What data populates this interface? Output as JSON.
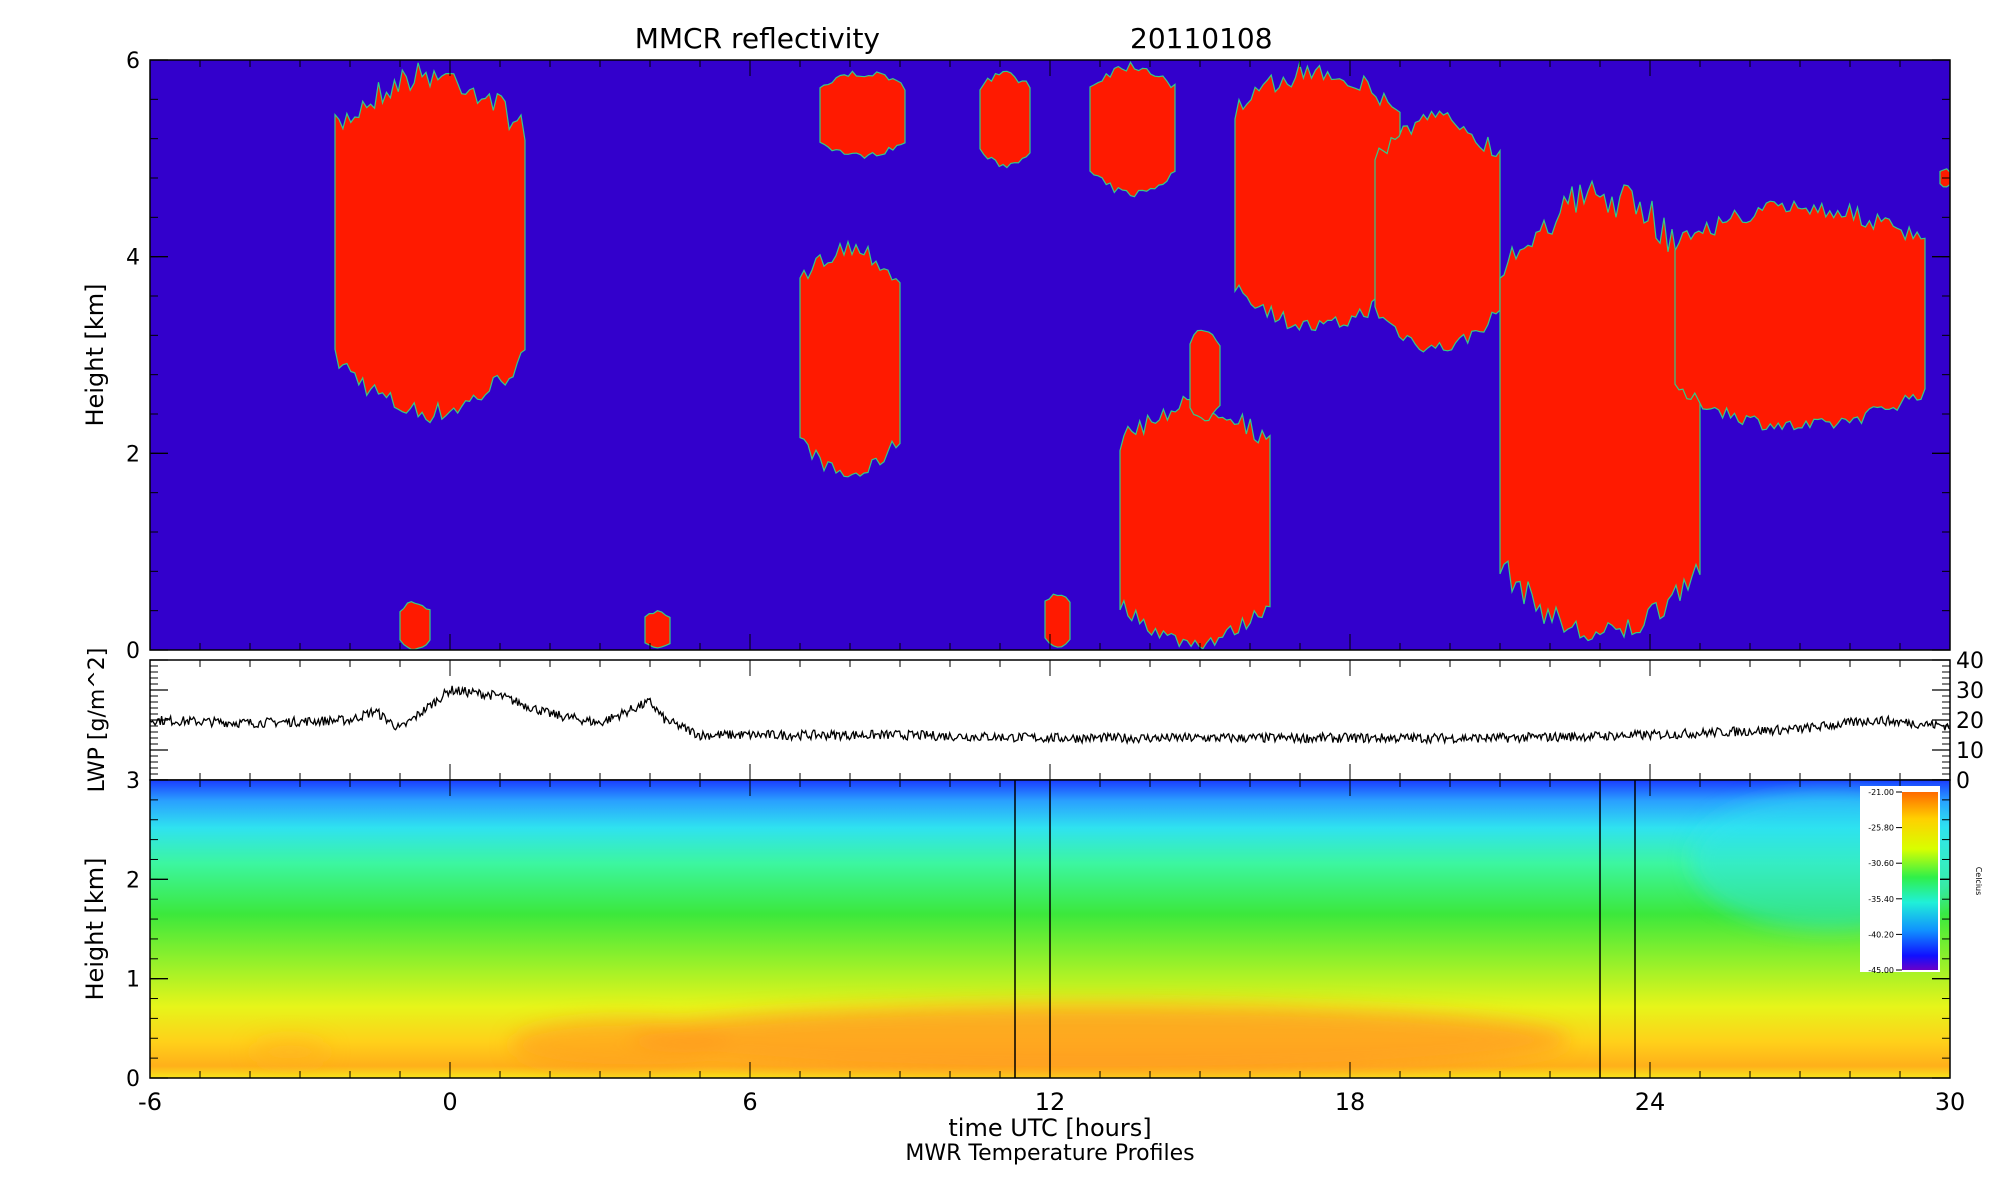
{
  "title": {
    "left": "MMCR reflectivity",
    "right": "20110108"
  },
  "xlabel": "time UTC [hours]",
  "subtitle": "MWR Temperature Profiles",
  "x_ticks": [
    "-6",
    "0",
    "6",
    "12",
    "18",
    "24",
    "30"
  ],
  "chart_data": [
    {
      "type": "heatmap",
      "name": "MMCR reflectivity",
      "xlim": [
        -6,
        30
      ],
      "ylim": [
        0,
        6
      ],
      "ylabel": "Height [km]",
      "y_ticks": [
        "0",
        "2",
        "4",
        "6"
      ],
      "colors": {
        "background": "#3300cc",
        "cloud": "#ff1a00",
        "edge": "#33cc88"
      },
      "cloud_regions": [
        {
          "t": [
            -2.3,
            1.5
          ],
          "h": [
            2.3,
            6.0
          ]
        },
        {
          "t": [
            -1.0,
            -0.4
          ],
          "h": [
            0.0,
            0.5
          ]
        },
        {
          "t": [
            3.9,
            4.4
          ],
          "h": [
            0.0,
            0.4
          ]
        },
        {
          "t": [
            7.0,
            9.0
          ],
          "h": [
            1.7,
            4.2
          ]
        },
        {
          "t": [
            7.4,
            9.1
          ],
          "h": [
            5.0,
            5.9
          ]
        },
        {
          "t": [
            10.6,
            11.6
          ],
          "h": [
            4.9,
            5.9
          ]
        },
        {
          "t": [
            11.9,
            12.4
          ],
          "h": [
            0.0,
            0.6
          ]
        },
        {
          "t": [
            12.8,
            14.5
          ],
          "h": [
            4.6,
            6.0
          ]
        },
        {
          "t": [
            13.4,
            16.4
          ],
          "h": [
            0.0,
            2.6
          ]
        },
        {
          "t": [
            14.8,
            15.4
          ],
          "h": [
            2.3,
            3.3
          ]
        },
        {
          "t": [
            15.7,
            19.0
          ],
          "h": [
            3.2,
            6.0
          ]
        },
        {
          "t": [
            18.5,
            21.0
          ],
          "h": [
            3.0,
            5.5
          ]
        },
        {
          "t": [
            21.0,
            25.0
          ],
          "h": [
            0.0,
            4.8
          ]
        },
        {
          "t": [
            24.5,
            29.5
          ],
          "h": [
            2.2,
            4.6
          ]
        },
        {
          "t": [
            29.8,
            30.0
          ],
          "h": [
            4.7,
            4.9
          ]
        }
      ]
    },
    {
      "type": "line",
      "name": "LWP",
      "xlim": [
        -6,
        30
      ],
      "ylim": [
        0,
        40
      ],
      "ylabel": "LWP [g/m^2]",
      "y_ticks": [
        "0",
        "10",
        "20",
        "30",
        "40"
      ],
      "x": [
        -6,
        -4,
        -2,
        -1.5,
        -1,
        0,
        0.5,
        1,
        2,
        3,
        3.7,
        4,
        4.3,
        5,
        6,
        9,
        12,
        14,
        18,
        21,
        24,
        27,
        28.5,
        30
      ],
      "y": [
        20,
        19,
        20,
        23,
        17,
        30,
        29,
        28,
        22,
        19,
        24,
        26,
        20,
        15,
        15,
        15,
        14,
        14,
        14,
        14,
        15,
        17,
        20,
        18
      ]
    },
    {
      "type": "heatmap",
      "name": "MWR Temperature Profiles",
      "xlim": [
        -6,
        30
      ],
      "ylim": [
        0,
        3
      ],
      "ylabel": "Height [km]",
      "y_ticks": [
        "0",
        "1",
        "2",
        "3"
      ],
      "vertical_lines": [
        11.3,
        12.0,
        23.0,
        23.7
      ],
      "colorbar": {
        "label": "Celcius",
        "ticks": [
          "-21.00",
          "-25.80",
          "-30.60",
          "-35.40",
          "-40.20",
          "-45.00"
        ],
        "range": [
          -45.0,
          -21.0
        ]
      }
    }
  ]
}
